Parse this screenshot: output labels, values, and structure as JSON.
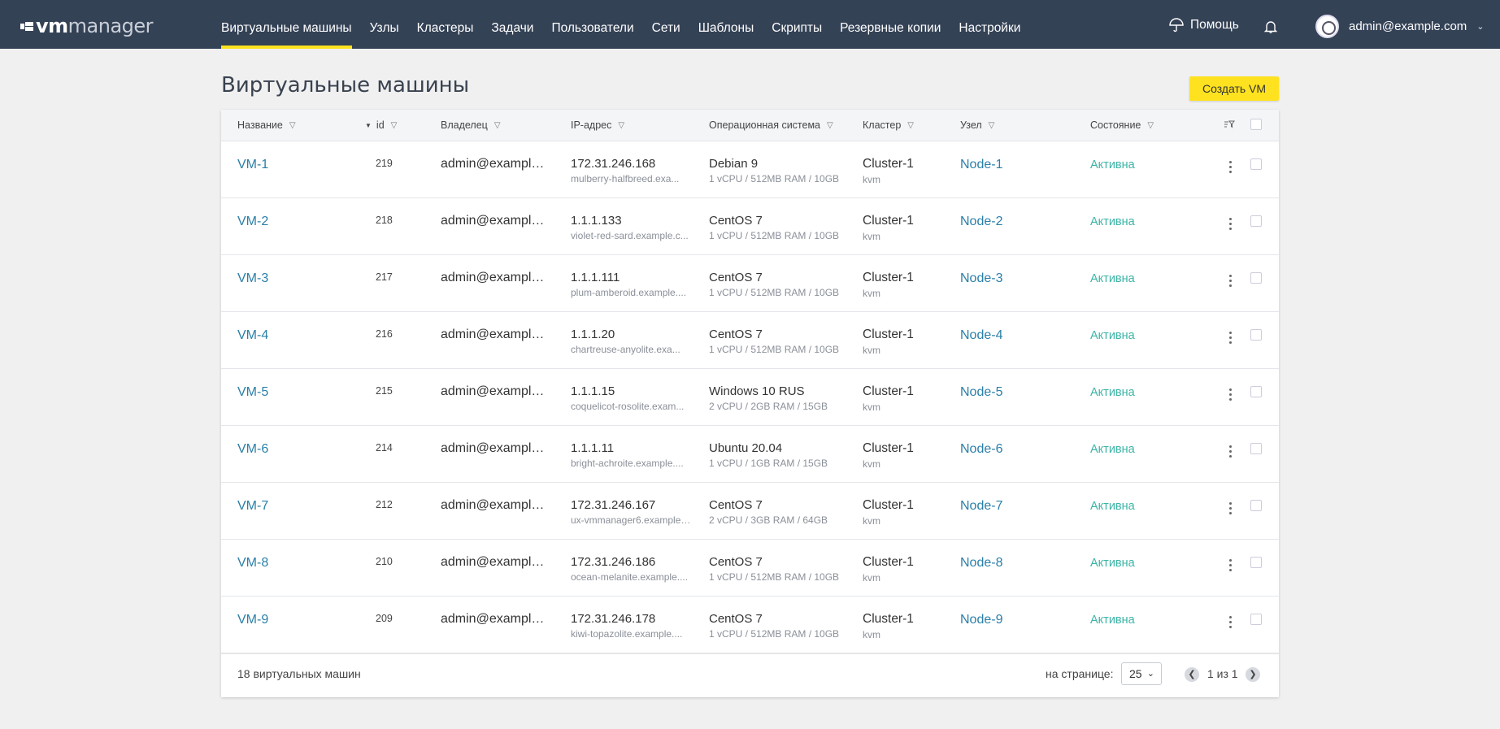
{
  "brand": {
    "vm": "vm",
    "manager": "manager"
  },
  "nav": [
    {
      "label": "Виртуальные машины",
      "active": true
    },
    {
      "label": "Узлы"
    },
    {
      "label": "Кластеры"
    },
    {
      "label": "Задачи"
    },
    {
      "label": "Пользователи"
    },
    {
      "label": "Сети"
    },
    {
      "label": "Шаблоны"
    },
    {
      "label": "Скрипты"
    },
    {
      "label": "Резервные копии"
    },
    {
      "label": "Настройки"
    }
  ],
  "header": {
    "help": "Помощь",
    "user": "admin@example.com"
  },
  "page": {
    "title": "Виртуальные машины",
    "create_button": "Создать VM"
  },
  "columns": {
    "name": "Название",
    "id": "id",
    "owner": "Владелец",
    "ip": "IP-адрес",
    "os": "Операционная система",
    "cluster": "Кластер",
    "node": "Узел",
    "state": "Состояние"
  },
  "rows": [
    {
      "name": "VM-1",
      "id": "219",
      "owner": "admin@example...",
      "ip": "172.31.246.168",
      "host": "mulberry-halfbreed.exa...",
      "os": "Debian 9",
      "res": "1 vCPU / 512MB RAM / 10GB",
      "cluster": "Cluster-1",
      "type": "kvm",
      "node": "Node-1",
      "state": "Активна"
    },
    {
      "name": "VM-2",
      "id": "218",
      "owner": "admin@example...",
      "ip": "1.1.1.133",
      "host": "violet-red-sard.example.c...",
      "os": "CentOS 7",
      "res": "1 vCPU / 512MB RAM / 10GB",
      "cluster": "Cluster-1",
      "type": "kvm",
      "node": "Node-2",
      "state": "Активна"
    },
    {
      "name": "VM-3",
      "id": "217",
      "owner": "admin@example...",
      "ip": "1.1.1.111",
      "host": "plum-amberoid.example....",
      "os": "CentOS 7",
      "res": "1 vCPU / 512MB RAM / 10GB",
      "cluster": "Cluster-1",
      "type": "kvm",
      "node": "Node-3",
      "state": "Активна"
    },
    {
      "name": "VM-4",
      "id": "216",
      "owner": "admin@example...",
      "ip": "1.1.1.20",
      "host": "chartreuse-anyolite.exa...",
      "os": "CentOS 7",
      "res": "1 vCPU / 512MB RAM / 10GB",
      "cluster": "Cluster-1",
      "type": "kvm",
      "node": "Node-4",
      "state": "Активна"
    },
    {
      "name": "VM-5",
      "id": "215",
      "owner": "admin@example...",
      "ip": "1.1.1.15",
      "host": "coquelicot-rosolite.exam...",
      "os": "Windows 10 RUS",
      "res": "2 vCPU / 2GB RAM / 15GB",
      "cluster": "Cluster-1",
      "type": "kvm",
      "node": "Node-5",
      "state": "Активна"
    },
    {
      "name": "VM-6",
      "id": "214",
      "owner": "admin@example...",
      "ip": "1.1.1.11",
      "host": "bright-achroite.example....",
      "os": "Ubuntu 20.04",
      "res": "1 vCPU / 1GB RAM / 15GB",
      "cluster": "Cluster-1",
      "type": "kvm",
      "node": "Node-6",
      "state": "Активна"
    },
    {
      "name": "VM-7",
      "id": "212",
      "owner": "admin@example...",
      "ip": "172.31.246.167",
      "host": "ux-vmmanager6.example....",
      "os": "CentOS 7",
      "res": "2 vCPU / 3GB RAM / 64GB",
      "cluster": "Cluster-1",
      "type": "kvm",
      "node": "Node-7",
      "state": "Активна"
    },
    {
      "name": "VM-8",
      "id": "210",
      "owner": "admin@example...",
      "ip": "172.31.246.186",
      "host": "ocean-melanite.example....",
      "os": "CentOS 7",
      "res": "1 vCPU / 512MB RAM / 10GB",
      "cluster": "Cluster-1",
      "type": "kvm",
      "node": "Node-8",
      "state": "Активна"
    },
    {
      "name": "VM-9",
      "id": "209",
      "owner": "admin@example...",
      "ip": "172.31.246.178",
      "host": "kiwi-topazolite.example....",
      "os": "CentOS 7",
      "res": "1 vCPU / 512MB RAM / 10GB",
      "cluster": "Cluster-1",
      "type": "kvm",
      "node": "Node-9",
      "state": "Активна"
    }
  ],
  "footer": {
    "count": "18 виртуальных машин",
    "per_page_label": "на странице:",
    "per_page": "25",
    "page_info": "1 из 1"
  },
  "colors": {
    "nav_bg": "#344256",
    "accent": "#ffe21f",
    "link": "#2a7fa8",
    "active_state": "#3bb4a6"
  }
}
